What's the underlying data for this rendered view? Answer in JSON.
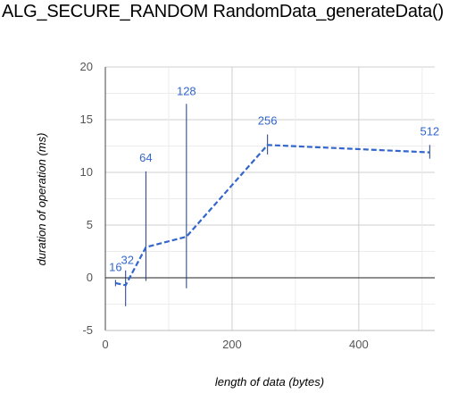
{
  "chart_data": {
    "type": "line",
    "title": "ALG_SECURE_RANDOM RandomData_generateData()",
    "xlabel": "length of data (bytes)",
    "ylabel": "duration of operation (ms)",
    "xlim": [
      0,
      520
    ],
    "ylim": [
      -5,
      20
    ],
    "xticks": [
      0,
      200,
      400
    ],
    "yticks": [
      -5,
      0,
      5,
      10,
      15,
      20
    ],
    "grid": true,
    "legend": "none",
    "series": [
      {
        "x": [
          16,
          32,
          64,
          128,
          256,
          512
        ],
        "y": [
          -0.5,
          -0.7,
          2.9,
          3.9,
          12.6,
          11.9
        ],
        "error_low": [
          -0.8,
          -2.7,
          -0.3,
          -1.0,
          11.7,
          11.3
        ],
        "error_high": [
          -0.2,
          0.7,
          10.1,
          16.5,
          13.6,
          12.6
        ],
        "labels": [
          "16",
          "32",
          "64",
          "128",
          "256",
          "512"
        ],
        "color": "#3366cc",
        "error_color": "#1f3d7a",
        "line_style": "dashed"
      }
    ]
  }
}
